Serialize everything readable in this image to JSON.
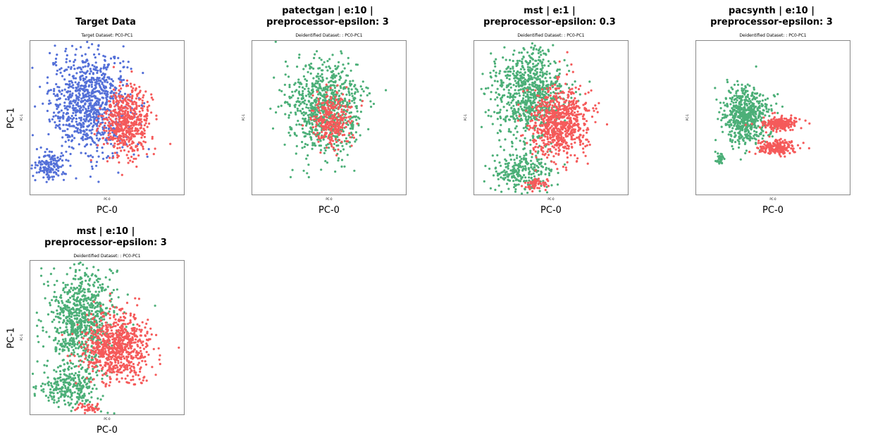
{
  "colors": {
    "blue": "#5470d8",
    "red": "#f55a5a",
    "green": "#4caf78"
  },
  "panels": [
    {
      "title_lines": [
        "Target Data"
      ],
      "subtitle": "Target Dataset: PC0-PC1",
      "tiny_x": "PC-0",
      "tiny_y": "PC-1",
      "xlabel": "PC-0",
      "ylabel": "PC-1",
      "chart_data": {
        "type": "scatter",
        "xlabel": "PC-0",
        "ylabel": "PC-1",
        "series": [
          {
            "color": "blue",
            "clusters": [
              {
                "cx": -0.8,
                "cy": 0.9,
                "sx": 0.9,
                "sy": 1.1,
                "n": 900
              },
              {
                "cx": -2.6,
                "cy": -1.8,
                "sx": 0.35,
                "sy": 0.3,
                "n": 140
              }
            ]
          },
          {
            "color": "red",
            "clusters": [
              {
                "cx": 0.9,
                "cy": 0.1,
                "sx": 0.55,
                "sy": 0.7,
                "n": 550
              }
            ]
          }
        ],
        "xlim": [
          -3.5,
          3.5
        ],
        "ylim": [
          -3.0,
          3.5
        ]
      }
    },
    {
      "title_lines": [
        "patectgan | e:10 |",
        "preprocessor-epsilon: 3"
      ],
      "subtitle": "Deidentified Dataset: : PC0-PC1",
      "tiny_x": "PC-0",
      "tiny_y": "PC-1",
      "xlabel": "PC-0",
      "ylabel": "",
      "chart_data": {
        "type": "scatter",
        "xlabel": "PC-0",
        "series": [
          {
            "color": "green",
            "clusters": [
              {
                "cx": -0.2,
                "cy": 0.6,
                "sx": 0.85,
                "sy": 1.0,
                "n": 800
              }
            ]
          },
          {
            "color": "red",
            "clusters": [
              {
                "cx": 0.1,
                "cy": 0.2,
                "sx": 0.5,
                "sy": 0.55,
                "n": 300
              }
            ]
          }
        ],
        "xlim": [
          -3.5,
          3.5
        ],
        "ylim": [
          -3.0,
          3.5
        ]
      }
    },
    {
      "title_lines": [
        "mst | e:1 |",
        "preprocessor-epsilon: 0.3"
      ],
      "subtitle": "Deidentified Dataset: : PC0-PC1",
      "tiny_x": "PC-0",
      "tiny_y": "PC-1",
      "xlabel": "PC-0",
      "ylabel": "",
      "chart_data": {
        "type": "scatter",
        "xlabel": "PC-0",
        "series": [
          {
            "color": "green",
            "clusters": [
              {
                "cx": -1.0,
                "cy": 1.2,
                "sx": 0.8,
                "sy": 1.0,
                "n": 800
              },
              {
                "cx": -1.3,
                "cy": -2.0,
                "sx": 0.7,
                "sy": 0.45,
                "n": 250
              }
            ]
          },
          {
            "color": "red",
            "clusters": [
              {
                "cx": 0.4,
                "cy": 0.1,
                "sx": 0.7,
                "sy": 0.75,
                "n": 700
              },
              {
                "cx": -0.7,
                "cy": -2.6,
                "sx": 0.3,
                "sy": 0.15,
                "n": 60
              }
            ]
          }
        ],
        "xlim": [
          -3.5,
          3.5
        ],
        "ylim": [
          -3.0,
          3.5
        ]
      }
    },
    {
      "title_lines": [
        "pacsynth | e:10 |",
        "preprocessor-epsilon: 3"
      ],
      "subtitle": "Deidentified Dataset: : PC0-PC1",
      "tiny_x": "PC-0",
      "tiny_y": "PC-1",
      "xlabel": "PC-0",
      "ylabel": "",
      "chart_data": {
        "type": "scatter",
        "xlabel": "PC-0",
        "series": [
          {
            "color": "green",
            "clusters": [
              {
                "cx": -1.2,
                "cy": 0.3,
                "sx": 0.55,
                "sy": 0.6,
                "n": 600
              },
              {
                "cx": -2.4,
                "cy": -1.5,
                "sx": 0.12,
                "sy": 0.12,
                "n": 40
              }
            ]
          },
          {
            "color": "red",
            "clusters": [
              {
                "cx": 0.3,
                "cy": 0.0,
                "sx": 0.45,
                "sy": 0.15,
                "n": 200
              },
              {
                "cx": 0.2,
                "cy": -1.0,
                "sx": 0.45,
                "sy": 0.15,
                "n": 200
              }
            ]
          }
        ],
        "xlim": [
          -3.5,
          3.5
        ],
        "ylim": [
          -3.0,
          3.5
        ]
      }
    },
    {
      "title_lines": [
        "mst | e:10 |",
        "preprocessor-epsilon: 3"
      ],
      "subtitle": "Deidentified Dataset: : PC0-PC1",
      "tiny_x": "PC-0",
      "tiny_y": "PC-1",
      "xlabel": "PC-0",
      "ylabel": "PC-1",
      "chart_data": {
        "type": "scatter",
        "xlabel": "PC-0",
        "ylabel": "PC-1",
        "series": [
          {
            "color": "green",
            "clusters": [
              {
                "cx": -1.2,
                "cy": 1.0,
                "sx": 0.8,
                "sy": 1.1,
                "n": 800
              },
              {
                "cx": -1.7,
                "cy": -1.9,
                "sx": 0.7,
                "sy": 0.4,
                "n": 250
              }
            ]
          },
          {
            "color": "red",
            "clusters": [
              {
                "cx": 0.4,
                "cy": -0.2,
                "sx": 0.75,
                "sy": 0.75,
                "n": 750
              },
              {
                "cx": -0.9,
                "cy": -2.7,
                "sx": 0.3,
                "sy": 0.12,
                "n": 40
              }
            ]
          }
        ],
        "xlim": [
          -3.5,
          3.5
        ],
        "ylim": [
          -3.0,
          3.5
        ]
      }
    }
  ]
}
